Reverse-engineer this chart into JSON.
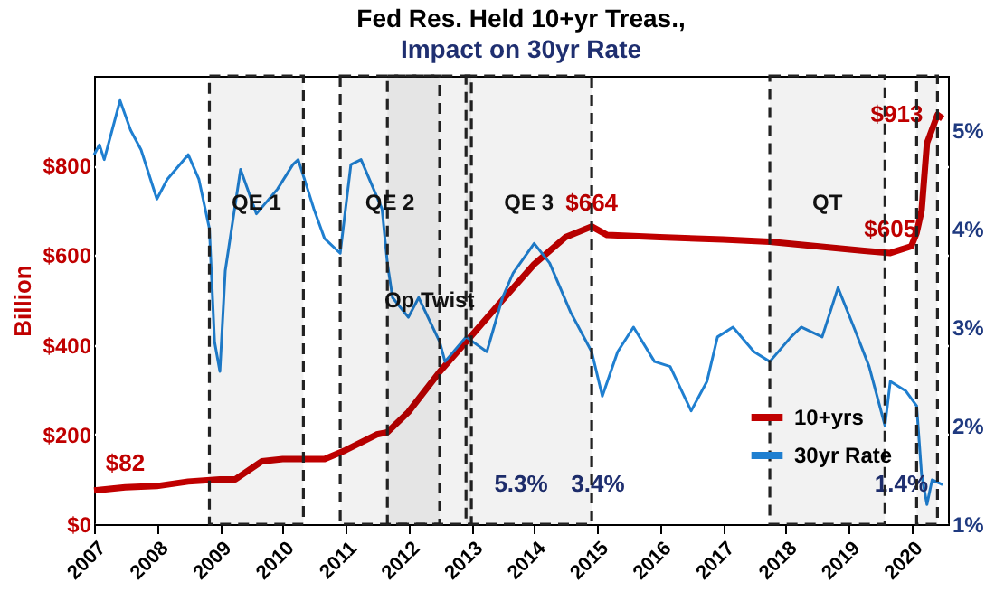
{
  "chart_data": {
    "type": "line",
    "title": "Fed Res. Held 10+yr Treas.,",
    "subtitle": "Impact on 30yr Rate",
    "ylabel": "Billion",
    "xlim": [
      "2007-01-01",
      "2020-08-01"
    ],
    "xticks": [
      "2007",
      "2008",
      "2009",
      "2010",
      "2011",
      "2012",
      "2013",
      "2014",
      "2015",
      "2016",
      "2017",
      "2018",
      "2019",
      "2020"
    ],
    "ylim": [
      0,
      1000
    ],
    "yticks": [
      {
        "value": 0,
        "label": "$0"
      },
      {
        "value": 200,
        "label": "$200"
      },
      {
        "value": 400,
        "label": "$400"
      },
      {
        "value": 600,
        "label": "$600"
      },
      {
        "value": 800,
        "label": "$800"
      }
    ],
    "y2lim": [
      1,
      5.55
    ],
    "y2ticks": [
      {
        "value": 1,
        "label": "1%"
      },
      {
        "value": 2,
        "label": "2%"
      },
      {
        "value": 3,
        "label": "3%"
      },
      {
        "value": 4,
        "label": "4%"
      },
      {
        "value": 5,
        "label": "5%"
      }
    ],
    "grid": "y",
    "legend": "bottom right",
    "series": [
      {
        "name": "10+yrs",
        "color": "#c00000",
        "x": [
          "2007-01",
          "2007-07",
          "2008-01",
          "2008-07",
          "2009-01",
          "2009-04",
          "2009-09",
          "2010-01",
          "2010-09",
          "2011-01",
          "2011-07",
          "2011-09",
          "2012-01",
          "2012-07",
          "2013-01",
          "2013-07",
          "2014-01",
          "2014-07",
          "2014-12",
          "2015-03",
          "2016-01",
          "2017-01",
          "2017-10",
          "2018-07",
          "2019-04",
          "2019-09",
          "2020-01",
          "2020-02",
          "2020-03",
          "2020-04",
          "2020-06",
          "2020-07"
        ],
        "values": [
          75,
          82,
          85,
          95,
          100,
          100,
          140,
          145,
          145,
          165,
          200,
          205,
          250,
          340,
          420,
          500,
          580,
          640,
          664,
          645,
          640,
          635,
          630,
          620,
          610,
          605,
          620,
          650,
          700,
          850,
          913,
          905
        ]
      },
      {
        "name": "30yr Rate",
        "color": "#1f7fd0",
        "axis": "y2",
        "x": [
          "2007-01",
          "2007-02",
          "2007-03",
          "2007-06",
          "2007-08",
          "2007-10",
          "2008-01",
          "2008-03",
          "2008-07",
          "2008-09",
          "2008-11",
          "2008-12",
          "2009-01",
          "2009-02",
          "2009-05",
          "2009-08",
          "2009-12",
          "2010-03",
          "2010-04",
          "2010-07",
          "2010-09",
          "2010-12",
          "2011-02",
          "2011-04",
          "2011-08",
          "2011-09",
          "2011-10",
          "2012-01",
          "2012-03",
          "2012-07",
          "2012-08",
          "2012-12",
          "2013-04",
          "2013-07",
          "2013-09",
          "2014-01",
          "2014-04",
          "2014-08",
          "2014-12",
          "2015-02",
          "2015-05",
          "2015-08",
          "2015-12",
          "2016-03",
          "2016-07",
          "2016-10",
          "2016-12",
          "2017-03",
          "2017-07",
          "2017-10",
          "2018-02",
          "2018-04",
          "2018-08",
          "2018-11",
          "2019-02",
          "2019-05",
          "2019-08",
          "2019-09",
          "2019-12",
          "2020-02",
          "2020-03",
          "2020-04",
          "2020-05",
          "2020-07"
        ],
        "values": [
          4.75,
          4.85,
          4.7,
          5.3,
          5.0,
          4.8,
          4.3,
          4.5,
          4.75,
          4.5,
          4.0,
          2.85,
          2.55,
          3.57,
          4.6,
          4.15,
          4.4,
          4.65,
          4.7,
          4.2,
          3.9,
          3.75,
          4.65,
          4.7,
          4.2,
          3.65,
          3.3,
          3.1,
          3.3,
          2.85,
          2.65,
          2.9,
          2.75,
          3.3,
          3.55,
          3.85,
          3.65,
          3.15,
          2.75,
          2.3,
          2.75,
          3.0,
          2.65,
          2.6,
          2.15,
          2.45,
          2.9,
          3.0,
          2.75,
          2.65,
          2.9,
          3.0,
          2.9,
          3.4,
          3.0,
          2.6,
          2.0,
          2.45,
          2.35,
          2.2,
          1.5,
          1.2,
          1.45,
          1.4
        ]
      }
    ],
    "bands": [
      {
        "axis": "x",
        "from": "2008-11",
        "to": "2010-05",
        "label": "QE 1"
      },
      {
        "axis": "x",
        "from": "2010-12",
        "to": "2012-07",
        "label": "QE 2"
      },
      {
        "axis": "x",
        "from": "2011-09",
        "to": "2013-01",
        "label": "Op Twist"
      },
      {
        "axis": "x",
        "from": "2012-12",
        "to": "2014-12",
        "label": "QE 3"
      },
      {
        "axis": "x",
        "from": "2017-10",
        "to": "2019-08",
        "label": "QT"
      },
      {
        "axis": "x",
        "from": "2020-02",
        "to": "2020-06"
      }
    ],
    "annotations": [
      {
        "text": "$82",
        "x": "2007-07",
        "y": 82
      },
      {
        "text": "$664",
        "x": "2014-12",
        "y": 664
      },
      {
        "text": "$605",
        "x": "2019-09",
        "y": 605
      },
      {
        "text": "$913",
        "x": "2020-06",
        "y": 913
      },
      "5.3%",
      "3.4%",
      {
        "text": "1.4%",
        "x": "2020-07",
        "y": 1.4
      }
    ]
  }
}
